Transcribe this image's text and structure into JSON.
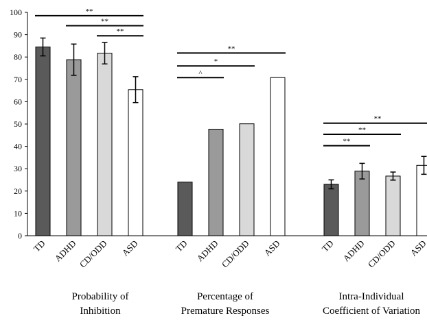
{
  "chart_data": {
    "type": "bar",
    "ylim": [
      0,
      100
    ],
    "yticks": [
      0,
      10,
      20,
      30,
      40,
      50,
      60,
      70,
      80,
      90,
      100
    ],
    "grid": false,
    "colors": {
      "TD": "#5a5a5a",
      "ADHD": "#9a9a9a",
      "CD/ODD": "#d9d9d9",
      "ASD": "#ffffff",
      "outline": "#000000"
    },
    "groups": [
      {
        "label": "Probability of Inhibition",
        "label_lines": [
          "Probability of",
          "Inhibition"
        ],
        "categories": [
          "TD",
          "ADHD",
          "CD/ODD",
          "ASD"
        ],
        "values": [
          84.5,
          78.8,
          81.7,
          65.4
        ],
        "errors": [
          4,
          7,
          4.8,
          5.8
        ],
        "significance": [
          {
            "from": 0,
            "to": 3,
            "label": "**",
            "y": 98.5
          },
          {
            "from": 1,
            "to": 3,
            "label": "**",
            "y": 94
          },
          {
            "from": 2,
            "to": 3,
            "label": "**",
            "y": 89.5
          }
        ]
      },
      {
        "label": "Percentage of Premature Responses",
        "label_lines": [
          "Percentage of",
          "Premature Responses"
        ],
        "categories": [
          "TD",
          "ADHD",
          "CD/ODD",
          "ASD"
        ],
        "values": [
          24,
          47.7,
          50.1,
          70.8
        ],
        "errors": [
          0,
          0,
          0,
          0
        ],
        "significance": [
          {
            "from": 0,
            "to": 3,
            "label": "**",
            "y": 81.8
          },
          {
            "from": 0,
            "to": 2,
            "label": "*",
            "y": 76
          },
          {
            "from": 0,
            "to": 1,
            "label": "^",
            "y": 70.8
          }
        ]
      },
      {
        "label": "Intra-Individual Coefficient of Variation",
        "label_lines": [
          "Intra-Individual",
          "Coefficient of Variation"
        ],
        "categories": [
          "TD",
          "ADHD",
          "CD/ODD",
          "ASD"
        ],
        "values": [
          23,
          28.9,
          26.7,
          31.5
        ],
        "errors": [
          2,
          3.5,
          1.8,
          4
        ],
        "significance": [
          {
            "from": 0,
            "to": 3,
            "label": "**",
            "y": 50.4
          },
          {
            "from": 0,
            "to": 2,
            "label": "**",
            "y": 45.4
          },
          {
            "from": 0,
            "to": 1,
            "label": "**",
            "y": 40.3
          }
        ]
      }
    ]
  }
}
